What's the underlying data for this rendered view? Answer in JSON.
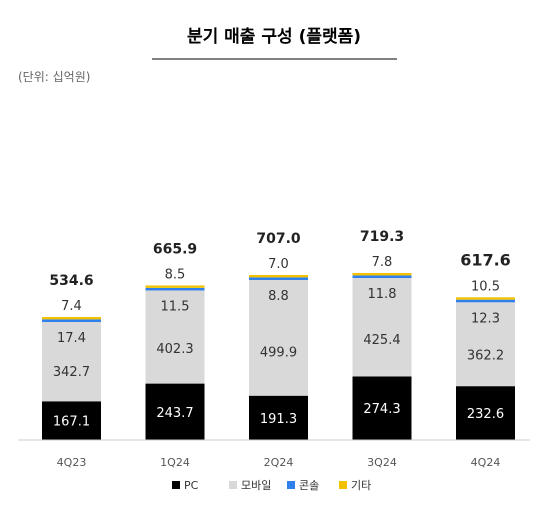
{
  "chart_data": {
    "type": "bar",
    "stacked": true,
    "title": "분기 매출 구성 (플랫폼)",
    "unit_label": "(단위: 십억원)",
    "categories": [
      "4Q23",
      "1Q24",
      "2Q24",
      "3Q24",
      "4Q24"
    ],
    "series": [
      {
        "name": "PC",
        "color": "#000000",
        "values": [
          167.1,
          243.7,
          191.3,
          274.3,
          232.6
        ]
      },
      {
        "name": "모바일",
        "color": "#d9d9d9",
        "values": [
          342.7,
          402.3,
          499.9,
          425.4,
          362.2
        ]
      },
      {
        "name": "콘솔",
        "color": "#2f80ed",
        "values": [
          17.4,
          11.5,
          8.8,
          11.8,
          12.3
        ]
      },
      {
        "name": "기타",
        "color": "#f2c200",
        "values": [
          7.4,
          8.5,
          7.0,
          7.8,
          10.5
        ]
      }
    ],
    "totals": [
      "534.6",
      "665.9",
      "707.0",
      "719.3",
      "617.6"
    ],
    "value_labels": [
      [
        "167.1",
        "243.7",
        "191.3",
        "274.3",
        "232.6"
      ],
      [
        "342.7",
        "402.3",
        "499.9",
        "425.4",
        "362.2"
      ],
      [
        "17.4",
        "11.5",
        "8.8",
        "11.8",
        "12.3"
      ],
      [
        "7.4",
        "8.5",
        "7.0",
        "7.8",
        "10.5"
      ]
    ],
    "grid": false,
    "legend_position": "bottom"
  }
}
